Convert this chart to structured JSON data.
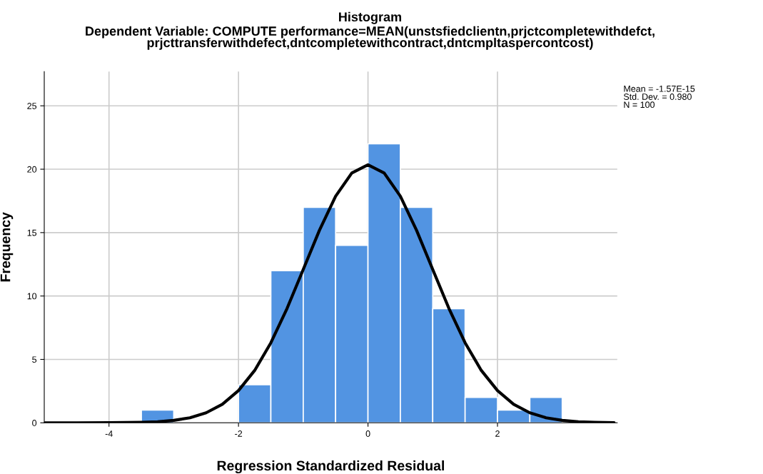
{
  "chart_data": {
    "type": "histogram",
    "title": "Histogram",
    "subtitle": "Dependent Variable: COMPUTE performance=MEAN(unstsfiedclientn,prjctcompletewithdefct,\nprjcttransferwithdefect,dntcompletewithcontract,dntcmpltaspercontcost)",
    "xlabel": "Regression Standardized Residual",
    "ylabel": "Frequency",
    "bins": [
      -3.5,
      -3.0,
      -2.5,
      -2.0,
      -1.5,
      -1.0,
      -0.5,
      0.0,
      0.5,
      1.0,
      1.5,
      2.0,
      2.5,
      3.0
    ],
    "series": [
      {
        "color": "#5294e2",
        "values": [
          1,
          0,
          0,
          3,
          12,
          17,
          14,
          22,
          17,
          9,
          2,
          1,
          2
        ]
      },
      {
        "type": "line",
        "color": "#000000",
        "x": [
          -5,
          -4.5,
          -4,
          -3.5,
          -3.25,
          -3,
          -2.75,
          -2.5,
          -2.25,
          -2,
          -1.75,
          -1.5,
          -1.25,
          -1,
          -0.75,
          -0.5,
          -0.25,
          0,
          0.25,
          0.5,
          0.75,
          1,
          1.25,
          1.5,
          1.75,
          2,
          2.25,
          2.5,
          2.75,
          3,
          3.25,
          3.5,
          3.8
        ],
        "values": [
          0,
          0,
          0.01,
          0.04,
          0.08,
          0.19,
          0.4,
          0.79,
          1.46,
          2.54,
          4.13,
          6.31,
          9.02,
          12.09,
          15.18,
          17.87,
          19.7,
          20.35,
          19.7,
          17.87,
          15.18,
          12.09,
          9.02,
          6.31,
          4.13,
          2.54,
          1.46,
          0.79,
          0.4,
          0.19,
          0.08,
          0.04,
          0.01
        ]
      }
    ],
    "xlim": [
      -5,
      3.85
    ],
    "ylim": [
      0,
      27.7
    ],
    "xticks": [
      -4,
      -2,
      0,
      2
    ],
    "yticks": [
      0,
      5,
      10,
      15,
      20,
      25
    ],
    "grid": true,
    "marker": "none",
    "line_style": "solid",
    "annotations": [
      "Mean = -1.57E-15\nStd. Dev. = 0.980\nN = 100"
    ]
  }
}
